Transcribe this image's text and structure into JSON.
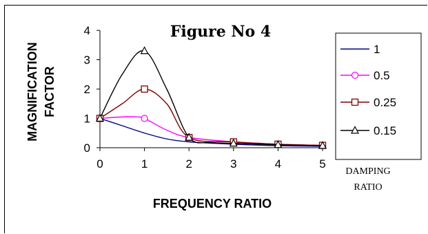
{
  "chart_data": {
    "type": "line",
    "title": "Figure No 4",
    "xlabel": "FREQUENCY RATIO",
    "ylabel": [
      "MAGNIFICATION",
      "FACTOR"
    ],
    "x_ticks": [
      "0",
      "1",
      "2",
      "3",
      "4",
      "5"
    ],
    "y_ticks": [
      "0",
      "1",
      "2",
      "3",
      "4"
    ],
    "xlim": [
      0,
      5
    ],
    "ylim": [
      0,
      4
    ],
    "grid": false,
    "legend_position": "right",
    "legend_title": [
      "DAMPING",
      "RATIO"
    ],
    "series": [
      {
        "name": "1",
        "color": "#000080",
        "marker": "none",
        "x": [
          0,
          0.5,
          1,
          1.5,
          2,
          3,
          4,
          5
        ],
        "y": [
          1.0,
          0.75,
          0.5,
          0.3,
          0.2,
          0.12,
          0.07,
          0.05
        ],
        "marked": []
      },
      {
        "name": "0.5",
        "color": "#ff00ff",
        "marker": "circle",
        "x": [
          0,
          0.5,
          0.8,
          1,
          1.5,
          2,
          3,
          4,
          5
        ],
        "y": [
          1.0,
          1.05,
          1.05,
          1.0,
          0.6,
          0.35,
          0.2,
          0.12,
          0.08
        ],
        "marked": [
          0,
          1,
          2,
          3,
          4,
          5
        ]
      },
      {
        "name": "0.25",
        "color": "#800000",
        "marker": "square",
        "x": [
          0,
          0.5,
          1,
          1.5,
          2,
          3,
          4,
          5
        ],
        "y": [
          1.0,
          1.5,
          2.0,
          1.5,
          0.35,
          0.2,
          0.12,
          0.08
        ],
        "marked": [
          0,
          1,
          2,
          3,
          4,
          5
        ]
      },
      {
        "name": "0.15",
        "color": "#000000",
        "marker": "triangle",
        "x": [
          0,
          0.5,
          1,
          1.5,
          2,
          2.5,
          3,
          4,
          5
        ],
        "y": [
          1.0,
          2.5,
          3.3,
          2.0,
          0.35,
          0.18,
          0.15,
          0.1,
          0.07
        ],
        "marked": [
          0,
          1,
          2,
          3,
          4,
          5
        ]
      }
    ]
  }
}
